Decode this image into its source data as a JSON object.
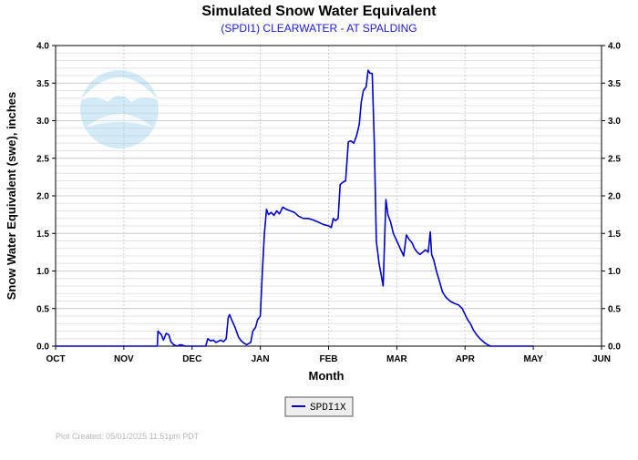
{
  "chart_data": {
    "type": "line",
    "title": "Simulated Snow Water Equivalent",
    "subtitle": "(SPDI1) CLEARWATER - AT SPALDING",
    "xlabel": "Month",
    "ylabel": "Snow Water Equivalent (swe),  inches",
    "categories": [
      "OCT",
      "NOV",
      "DEC",
      "JAN",
      "FEB",
      "MAR",
      "APR",
      "MAY",
      "JUN"
    ],
    "yticks": [
      "0.0",
      "0.5",
      "1.0",
      "1.5",
      "2.0",
      "2.5",
      "3.0",
      "3.5",
      "4.0"
    ],
    "ylim": [
      0,
      4
    ],
    "grid": true,
    "legend_position": "bottom",
    "series": [
      {
        "name": "SPDI1X",
        "color": "#0000cc",
        "x_unit": "month index (0 = start of OCT)",
        "points": [
          [
            0.0,
            0.0
          ],
          [
            1.49,
            0.0
          ],
          [
            1.5,
            0.2
          ],
          [
            1.55,
            0.15
          ],
          [
            1.58,
            0.08
          ],
          [
            1.62,
            0.17
          ],
          [
            1.66,
            0.15
          ],
          [
            1.69,
            0.06
          ],
          [
            1.73,
            0.02
          ],
          [
            1.78,
            0.0
          ],
          [
            1.83,
            0.02
          ],
          [
            1.9,
            0.0
          ],
          [
            2.0,
            0.0
          ],
          [
            2.2,
            0.0
          ],
          [
            2.23,
            0.1
          ],
          [
            2.27,
            0.07
          ],
          [
            2.31,
            0.08
          ],
          [
            2.35,
            0.05
          ],
          [
            2.42,
            0.08
          ],
          [
            2.46,
            0.06
          ],
          [
            2.5,
            0.1
          ],
          [
            2.53,
            0.38
          ],
          [
            2.55,
            0.42
          ],
          [
            2.58,
            0.35
          ],
          [
            2.63,
            0.25
          ],
          [
            2.68,
            0.12
          ],
          [
            2.72,
            0.07
          ],
          [
            2.76,
            0.04
          ],
          [
            2.8,
            0.02
          ],
          [
            2.86,
            0.05
          ],
          [
            2.89,
            0.2
          ],
          [
            2.93,
            0.25
          ],
          [
            2.96,
            0.35
          ],
          [
            3.0,
            0.4
          ],
          [
            3.03,
            1.0
          ],
          [
            3.06,
            1.5
          ],
          [
            3.09,
            1.82
          ],
          [
            3.12,
            1.75
          ],
          [
            3.16,
            1.78
          ],
          [
            3.2,
            1.74
          ],
          [
            3.24,
            1.8
          ],
          [
            3.28,
            1.76
          ],
          [
            3.33,
            1.85
          ],
          [
            3.38,
            1.82
          ],
          [
            3.44,
            1.8
          ],
          [
            3.5,
            1.78
          ],
          [
            3.56,
            1.73
          ],
          [
            3.63,
            1.7
          ],
          [
            3.7,
            1.7
          ],
          [
            3.77,
            1.68
          ],
          [
            3.85,
            1.65
          ],
          [
            3.92,
            1.62
          ],
          [
            4.0,
            1.6
          ],
          [
            4.04,
            1.58
          ],
          [
            4.07,
            1.7
          ],
          [
            4.1,
            1.67
          ],
          [
            4.14,
            1.7
          ],
          [
            4.17,
            2.15
          ],
          [
            4.21,
            2.18
          ],
          [
            4.25,
            2.2
          ],
          [
            4.29,
            2.72
          ],
          [
            4.33,
            2.73
          ],
          [
            4.37,
            2.7
          ],
          [
            4.41,
            2.8
          ],
          [
            4.45,
            2.95
          ],
          [
            4.48,
            3.25
          ],
          [
            4.51,
            3.4
          ],
          [
            4.55,
            3.45
          ],
          [
            4.58,
            3.67
          ],
          [
            4.61,
            3.63
          ],
          [
            4.64,
            3.63
          ],
          [
            4.67,
            2.7
          ],
          [
            4.7,
            1.4
          ],
          [
            4.74,
            1.1
          ],
          [
            4.77,
            0.95
          ],
          [
            4.8,
            0.8
          ],
          [
            4.84,
            1.95
          ],
          [
            4.87,
            1.75
          ],
          [
            4.91,
            1.65
          ],
          [
            4.95,
            1.5
          ],
          [
            5.0,
            1.4
          ],
          [
            5.05,
            1.3
          ],
          [
            5.1,
            1.2
          ],
          [
            5.14,
            1.48
          ],
          [
            5.18,
            1.42
          ],
          [
            5.22,
            1.38
          ],
          [
            5.26,
            1.3
          ],
          [
            5.3,
            1.25
          ],
          [
            5.34,
            1.22
          ],
          [
            5.38,
            1.25
          ],
          [
            5.42,
            1.28
          ],
          [
            5.46,
            1.25
          ],
          [
            5.49,
            1.52
          ],
          [
            5.51,
            1.22
          ],
          [
            5.54,
            1.15
          ],
          [
            5.58,
            1.0
          ],
          [
            5.63,
            0.85
          ],
          [
            5.67,
            0.72
          ],
          [
            5.72,
            0.65
          ],
          [
            5.78,
            0.6
          ],
          [
            5.84,
            0.57
          ],
          [
            5.9,
            0.55
          ],
          [
            5.96,
            0.5
          ],
          [
            6.0,
            0.42
          ],
          [
            6.04,
            0.35
          ],
          [
            6.08,
            0.3
          ],
          [
            6.12,
            0.22
          ],
          [
            6.17,
            0.15
          ],
          [
            6.22,
            0.1
          ],
          [
            6.28,
            0.05
          ],
          [
            6.33,
            0.02
          ],
          [
            6.37,
            0.0
          ],
          [
            7.0,
            0.0
          ]
        ]
      }
    ]
  },
  "logo": {
    "name": "noaa-logo",
    "text": "NOAA"
  },
  "footer": {
    "created": "Plot Created: 05/01/2025 11:51pm PDT"
  }
}
